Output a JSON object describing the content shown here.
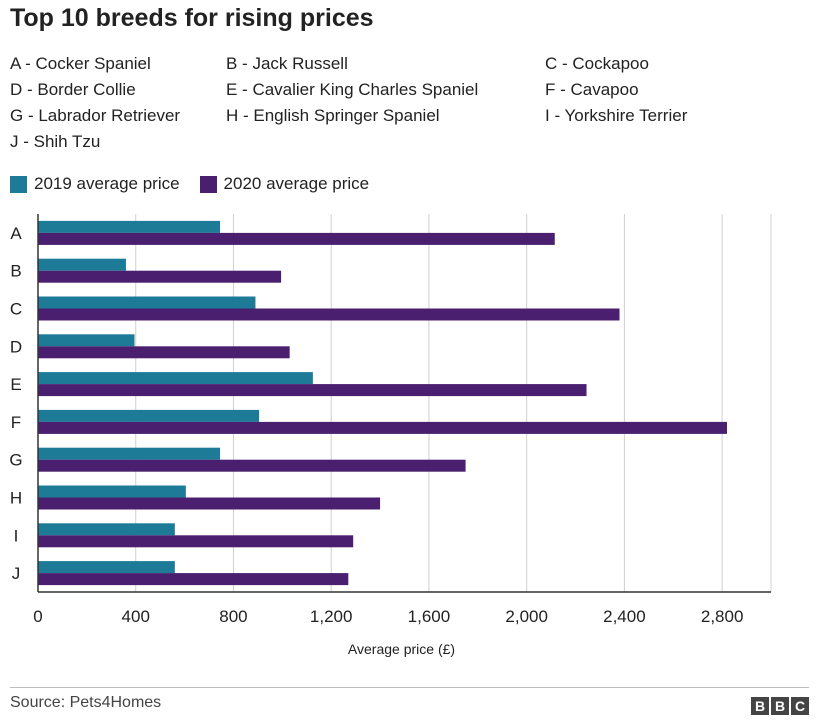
{
  "title": "Top 10 breeds for rising prices",
  "breed_key": [
    "A - Cocker Spaniel",
    "B - Jack Russell",
    "C - Cockapoo",
    "D - Border Collie",
    "E - Cavalier King Charles Spaniel",
    "F - Cavapoo",
    "G - Labrador Retriever",
    "H - English Springer Spaniel",
    "I - Yorkshire Terrier",
    "J - Shih Tzu"
  ],
  "source": "Source: Pets4Homes",
  "logo_letters": [
    "B",
    "B",
    "C"
  ],
  "colors": {
    "series_2019": "#1d7b97",
    "series_2020": "#4b1f6f",
    "grid": "#d0d0d0",
    "axis": "#333333"
  },
  "chart_data": {
    "type": "bar",
    "orientation": "horizontal",
    "categories": [
      "A",
      "B",
      "C",
      "D",
      "E",
      "F",
      "G",
      "H",
      "I",
      "J"
    ],
    "series": [
      {
        "name": "2019 average price",
        "values": [
          745,
          360,
          890,
          395,
          1125,
          905,
          745,
          605,
          560,
          560
        ]
      },
      {
        "name": "2020 average price",
        "values": [
          2115,
          995,
          2380,
          1030,
          2245,
          2820,
          1750,
          1400,
          1290,
          1270
        ]
      }
    ],
    "xlabel": "Average price (£)",
    "ylabel": "",
    "xlim": [
      0,
      3000
    ],
    "xticks": [
      0,
      400,
      800,
      1200,
      1600,
      2000,
      2400,
      2800
    ],
    "xtick_labels": [
      "0",
      "400",
      "800",
      "1,200",
      "1,600",
      "2,000",
      "2,400",
      "2,800"
    ],
    "grid": true,
    "legend_position": "top-left"
  }
}
